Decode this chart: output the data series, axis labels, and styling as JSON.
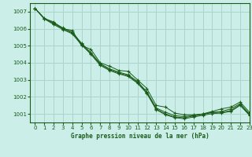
{
  "background_color": "#cceee8",
  "grid_color": "#aad4cc",
  "line_color": "#1a5c1a",
  "xlabel": "Graphe pression niveau de la mer (hPa)",
  "xlim": [
    -0.5,
    23
  ],
  "ylim": [
    1000.5,
    1007.5
  ],
  "yticks": [
    1001,
    1002,
    1003,
    1004,
    1005,
    1006,
    1007
  ],
  "xticks": [
    0,
    1,
    2,
    3,
    4,
    5,
    6,
    7,
    8,
    9,
    10,
    11,
    12,
    13,
    14,
    15,
    16,
    17,
    18,
    19,
    20,
    21,
    22,
    23
  ],
  "series": [
    [
      1007.2,
      1006.6,
      1006.4,
      1006.0,
      1005.9,
      1005.0,
      1004.8,
      1004.0,
      1003.8,
      1003.55,
      1003.5,
      1003.0,
      1002.5,
      1001.5,
      1001.4,
      1001.05,
      1000.95,
      1000.95,
      1001.0,
      1001.15,
      1001.3,
      1001.4,
      1001.7,
      1001.1
    ],
    [
      1007.2,
      1006.6,
      1006.35,
      1006.05,
      1005.8,
      1005.15,
      1004.6,
      1003.95,
      1003.65,
      1003.45,
      1003.3,
      1002.9,
      1002.3,
      1001.35,
      1001.1,
      1000.9,
      1000.85,
      1000.9,
      1001.0,
      1001.1,
      1001.15,
      1001.3,
      1001.6,
      1001.0
    ],
    [
      1007.2,
      1006.62,
      1006.3,
      1006.0,
      1005.75,
      1005.1,
      1004.55,
      1003.9,
      1003.6,
      1003.4,
      1003.25,
      1002.85,
      1002.25,
      1001.3,
      1001.0,
      1000.82,
      1000.78,
      1000.88,
      1000.98,
      1001.08,
      1001.1,
      1001.2,
      1001.55,
      1000.96
    ],
    [
      1007.2,
      1006.58,
      1006.25,
      1005.95,
      1005.7,
      1005.05,
      1004.5,
      1003.85,
      1003.55,
      1003.35,
      1003.2,
      1002.8,
      1002.2,
      1001.25,
      1000.95,
      1000.78,
      1000.72,
      1000.82,
      1000.92,
      1001.02,
      1001.05,
      1001.15,
      1001.5,
      1000.92
    ]
  ]
}
